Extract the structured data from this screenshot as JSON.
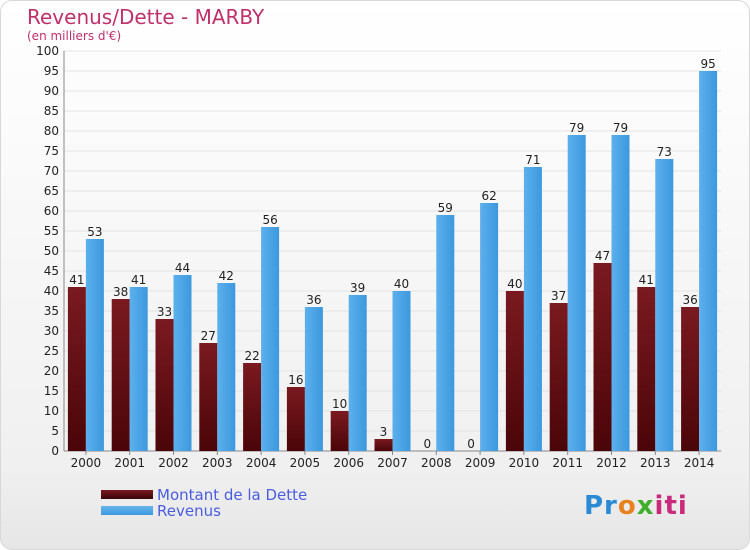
{
  "title": "Revenus/Dette - MARBY",
  "subtitle": "(en milliers d'€)",
  "colors": {
    "dette": "#7a1a20",
    "revenus": "#3d98de",
    "title": "#c0306a",
    "legend_text": "#4a5de0"
  },
  "legend": [
    {
      "label": "Montant de la Dette",
      "series": "dette"
    },
    {
      "label": "Revenus",
      "series": "revenus"
    }
  ],
  "logo": {
    "text": "Proxiti",
    "parts": [
      "Pr",
      "o",
      "x",
      "iti"
    ]
  },
  "chart_data": {
    "type": "bar",
    "title": "Revenus/Dette - MARBY",
    "subtitle": "(en milliers d'€)",
    "categories": [
      "2000",
      "2001",
      "2002",
      "2003",
      "2004",
      "2005",
      "2006",
      "2007",
      "2008",
      "2009",
      "2010",
      "2011",
      "2012",
      "2013",
      "2014"
    ],
    "series": [
      {
        "name": "Montant de la Dette",
        "values": [
          41,
          38,
          33,
          27,
          22,
          16,
          10,
          3,
          0,
          0,
          40,
          37,
          47,
          41,
          36
        ]
      },
      {
        "name": "Revenus",
        "values": [
          53,
          41,
          44,
          42,
          56,
          36,
          39,
          40,
          59,
          62,
          71,
          79,
          79,
          73,
          95
        ]
      }
    ],
    "ylim": [
      0,
      100
    ],
    "yticks": [
      0,
      5,
      10,
      15,
      20,
      25,
      30,
      35,
      40,
      45,
      50,
      55,
      60,
      65,
      70,
      75,
      80,
      85,
      90,
      95,
      100
    ],
    "grid": true,
    "legend_position": "bottom-left"
  }
}
